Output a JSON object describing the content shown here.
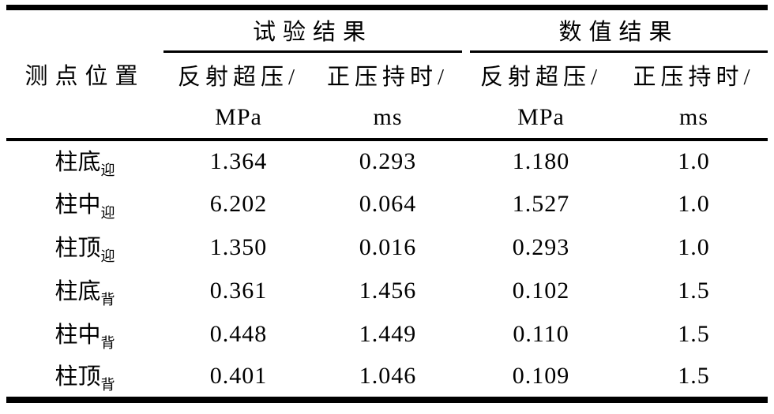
{
  "table": {
    "col1_header": "测点位置",
    "groups": [
      {
        "label": "试验结果"
      },
      {
        "label": "数值结果"
      }
    ],
    "sub_headers": [
      {
        "line1": "反射超压/",
        "line2": "MPa"
      },
      {
        "line1": "正压持时/",
        "line2": "ms"
      },
      {
        "line1": "反射超压/",
        "line2": "MPa"
      },
      {
        "line1": "正压持时/",
        "line2": "ms"
      }
    ],
    "rows": [
      {
        "label_base": "柱底",
        "label_sub": "迎",
        "values": [
          "1.364",
          "0.293",
          "1.180",
          "1.0"
        ]
      },
      {
        "label_base": "柱中",
        "label_sub": "迎",
        "values": [
          "6.202",
          "0.064",
          "1.527",
          "1.0"
        ]
      },
      {
        "label_base": "柱顶",
        "label_sub": "迎",
        "values": [
          "1.350",
          "0.016",
          "0.293",
          "1.0"
        ]
      },
      {
        "label_base": "柱底",
        "label_sub": "背",
        "values": [
          "0.361",
          "1.456",
          "0.102",
          "1.5"
        ]
      },
      {
        "label_base": "柱中",
        "label_sub": "背",
        "values": [
          "0.448",
          "1.449",
          "0.110",
          "1.5"
        ]
      },
      {
        "label_base": "柱顶",
        "label_sub": "背",
        "values": [
          "0.401",
          "1.046",
          "0.109",
          "1.5"
        ]
      }
    ],
    "colors": {
      "rule": "#000000",
      "background": "#ffffff",
      "text": "#000000"
    }
  }
}
